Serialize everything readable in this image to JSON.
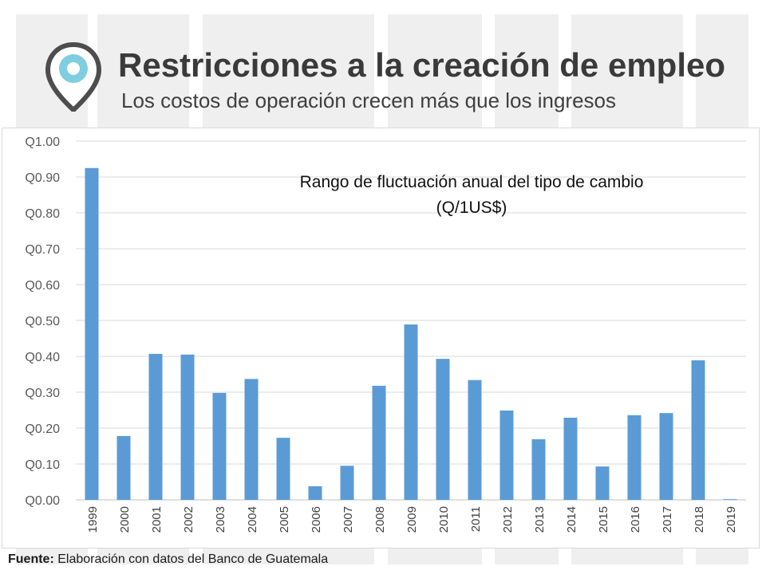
{
  "header": {
    "title": "Restricciones a la creación de empleo",
    "subtitle": "Los costos de operación crecen más que los ingresos"
  },
  "footer": {
    "source_label": "Fuente:",
    "source_text": " Elaboración con datos del Banco de Guatemala"
  },
  "colors": {
    "bar": "#5b9bd5",
    "title": "#3a3a3a",
    "gridline": "#d9d9d9",
    "pin_outer": "#4d4d4d",
    "pin_inner": "#7fcde0"
  },
  "chart_data": {
    "type": "bar",
    "title_line1": "Rango de fluctuación anual del tipo de cambio",
    "title_line2": "(Q/1US$)",
    "xlabel": "",
    "ylabel": "",
    "categories": [
      "1999",
      "2000",
      "2001",
      "2002",
      "2003",
      "2004",
      "2005",
      "2006",
      "2007",
      "2008",
      "2009",
      "2010",
      "2011",
      "2012",
      "2013",
      "2014",
      "2015",
      "2016",
      "2017",
      "2018",
      "2019"
    ],
    "values": [
      0.925,
      0.178,
      0.407,
      0.405,
      0.298,
      0.337,
      0.173,
      0.038,
      0.095,
      0.318,
      0.489,
      0.393,
      0.334,
      0.249,
      0.169,
      0.229,
      0.093,
      0.236,
      0.242,
      0.389,
      0.002
    ],
    "ylim": [
      0,
      1.0
    ],
    "yticks": [
      0,
      0.1,
      0.2,
      0.3,
      0.4,
      0.5,
      0.6,
      0.7,
      0.8,
      0.9,
      1.0
    ],
    "ytick_labels": [
      "Q0.00",
      "Q0.10",
      "Q0.20",
      "Q0.30",
      "Q0.40",
      "Q0.50",
      "Q0.60",
      "Q0.70",
      "Q0.80",
      "Q0.90",
      "Q1.00"
    ],
    "grid": true,
    "legend": "none"
  }
}
